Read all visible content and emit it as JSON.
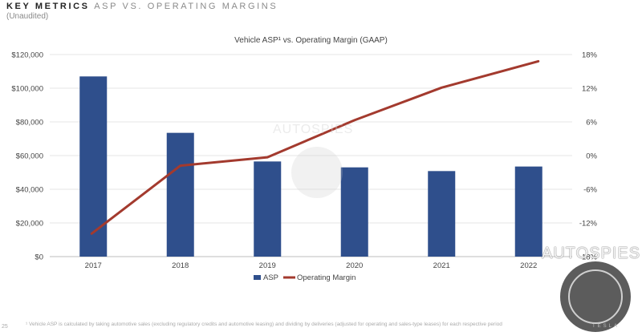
{
  "header": {
    "title_bold": "KEY METRICS",
    "title_light": "ASP VS. OPERATING MARGINS",
    "subtitle": "(Unaudited)"
  },
  "footnote": "¹ Vehicle ASP is calculated by taking automotive sales (excluding regulatory credits and automotive leasing) and dividing by deliveries (adjusted for operating and sales-type leases) for each respective period",
  "page_number": "25",
  "brand": "TESLA",
  "watermark": "AUTOSPIES",
  "chart_data": {
    "type": "bar",
    "title": "Vehicle ASP¹ vs. Operating Margin (GAAP)",
    "categories": [
      "2017",
      "2018",
      "2019",
      "2020",
      "2021",
      "2022"
    ],
    "series": [
      {
        "name": "ASP",
        "type": "bar",
        "axis": "left",
        "values": [
          107000,
          73500,
          56500,
          53000,
          50800,
          53500
        ]
      },
      {
        "name": "Operating Margin",
        "type": "line",
        "axis": "right",
        "values": [
          -13.9,
          -1.8,
          -0.3,
          6.3,
          12.1,
          16.8
        ]
      }
    ],
    "y_left": {
      "range": [
        0,
        120000
      ],
      "ticks": [
        0,
        20000,
        40000,
        60000,
        80000,
        100000,
        120000
      ],
      "tick_labels": [
        "$0",
        "$20,000",
        "$40,000",
        "$60,000",
        "$80,000",
        "$100,000",
        "$120,000"
      ]
    },
    "y_right": {
      "range": [
        -18,
        18
      ],
      "ticks": [
        -18,
        -12,
        -6,
        0,
        6,
        12,
        18
      ],
      "tick_labels": [
        "-18%",
        "-12%",
        "-6%",
        "0%",
        "6%",
        "12%",
        "18%"
      ]
    },
    "grid": true,
    "legend_position": "bottom",
    "colors": {
      "bar": "#2f4f8c",
      "line": "#a33a2e",
      "grid": "#e6e6e6",
      "axis": "#bdbdbd"
    }
  }
}
